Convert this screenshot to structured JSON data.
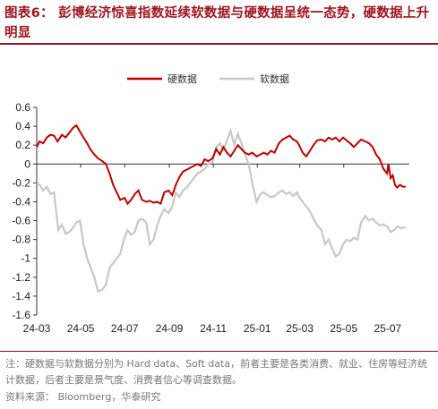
{
  "header": {
    "title": "图表6：  彭博经济惊喜指数延续软数据与硬数据呈统一态势，硬数据上升明显"
  },
  "footer": {
    "note": "注：硬数据与软数据分别为 Hard data、Soft data，前者主要是各类消费、就业、住房等经济统计数据，后者主要是景气度、消费者信心等调查数据。",
    "source": "资料来源：  Bloomberg，华泰研究"
  },
  "colors": {
    "hard": "#c00000",
    "soft": "#c8c8c8",
    "accent": "#a0141e"
  },
  "chart_data": {
    "type": "line",
    "legend_position": "top",
    "grid": false,
    "ylim": [
      -1.6,
      0.6
    ],
    "yticks": [
      0.6,
      0.4,
      0.2,
      0,
      -0.2,
      -0.4,
      -0.6,
      -0.8,
      -1,
      -1.2,
      -1.4,
      -1.6
    ],
    "ytick_labels": [
      "0.6",
      "0.4",
      "0.2",
      "0",
      "-0.2",
      "-0.4",
      "-0.6",
      "-0.8",
      "-1",
      "-1.2",
      "-1.4",
      "-1.6"
    ],
    "xlim": [
      "2024-03-01",
      "2025-07-31"
    ],
    "xticks": [
      "2024-03-01",
      "2024-05-01",
      "2024-07-01",
      "2024-09-01",
      "2024-11-01",
      "2025-01-01",
      "2025-03-01",
      "2025-05-01",
      "2025-07-01"
    ],
    "xtick_labels": [
      "24-03",
      "24-05",
      "24-07",
      "24-09",
      "24-11",
      "25-01",
      "25-03",
      "25-05",
      "25-07"
    ],
    "series": [
      {
        "name": "硬数据",
        "color": "#c00000",
        "points": [
          [
            "2024-03-01",
            0.18
          ],
          [
            "2024-03-05",
            0.24
          ],
          [
            "2024-03-10",
            0.22
          ],
          [
            "2024-03-15",
            0.28
          ],
          [
            "2024-03-20",
            0.31
          ],
          [
            "2024-03-25",
            0.3
          ],
          [
            "2024-03-30",
            0.24
          ],
          [
            "2024-04-05",
            0.31
          ],
          [
            "2024-04-10",
            0.28
          ],
          [
            "2024-04-15",
            0.33
          ],
          [
            "2024-04-20",
            0.38
          ],
          [
            "2024-04-25",
            0.41
          ],
          [
            "2024-05-01",
            0.33
          ],
          [
            "2024-05-05",
            0.28
          ],
          [
            "2024-05-10",
            0.22
          ],
          [
            "2024-05-15",
            0.15
          ],
          [
            "2024-05-20",
            0.1
          ],
          [
            "2024-05-25",
            0.06
          ],
          [
            "2024-05-31",
            0.03
          ],
          [
            "2024-06-05",
            0.0
          ],
          [
            "2024-06-10",
            -0.1
          ],
          [
            "2024-06-15",
            -0.22
          ],
          [
            "2024-06-20",
            -0.3
          ],
          [
            "2024-06-25",
            -0.38
          ],
          [
            "2024-07-01",
            -0.36
          ],
          [
            "2024-07-05",
            -0.42
          ],
          [
            "2024-07-10",
            -0.38
          ],
          [
            "2024-07-15",
            -0.32
          ],
          [
            "2024-07-20",
            -0.28
          ],
          [
            "2024-07-25",
            -0.38
          ],
          [
            "2024-07-31",
            -0.4
          ],
          [
            "2024-08-05",
            -0.39
          ],
          [
            "2024-08-10",
            -0.41
          ],
          [
            "2024-08-15",
            -0.4
          ],
          [
            "2024-08-20",
            -0.42
          ],
          [
            "2024-08-25",
            -0.3
          ],
          [
            "2024-08-31",
            -0.28
          ],
          [
            "2024-09-05",
            -0.33
          ],
          [
            "2024-09-10",
            -0.22
          ],
          [
            "2024-09-15",
            -0.14
          ],
          [
            "2024-09-20",
            -0.08
          ],
          [
            "2024-09-25",
            -0.06
          ],
          [
            "2024-09-30",
            -0.04
          ],
          [
            "2024-10-05",
            -0.02
          ],
          [
            "2024-10-10",
            0.0
          ],
          [
            "2024-10-15",
            -0.02
          ],
          [
            "2024-10-20",
            0.05
          ],
          [
            "2024-10-25",
            0.03
          ],
          [
            "2024-10-31",
            0.06
          ],
          [
            "2024-11-05",
            0.16
          ],
          [
            "2024-11-10",
            0.1
          ],
          [
            "2024-11-15",
            0.18
          ],
          [
            "2024-11-20",
            0.12
          ],
          [
            "2024-11-25",
            0.08
          ],
          [
            "2024-11-30",
            0.14
          ],
          [
            "2024-12-05",
            0.2
          ],
          [
            "2024-12-10",
            0.16
          ],
          [
            "2024-12-15",
            0.12
          ],
          [
            "2024-12-20",
            0.1
          ],
          [
            "2024-12-25",
            0.12
          ],
          [
            "2024-12-31",
            0.08
          ],
          [
            "2025-01-05",
            0.1
          ],
          [
            "2025-01-10",
            0.12
          ],
          [
            "2025-01-15",
            0.1
          ],
          [
            "2025-01-20",
            0.14
          ],
          [
            "2025-01-25",
            0.12
          ],
          [
            "2025-01-31",
            0.22
          ],
          [
            "2025-02-05",
            0.26
          ],
          [
            "2025-02-10",
            0.28
          ],
          [
            "2025-02-15",
            0.3
          ],
          [
            "2025-02-20",
            0.26
          ],
          [
            "2025-02-25",
            0.24
          ],
          [
            "2025-02-28",
            0.2
          ],
          [
            "2025-03-05",
            0.12
          ],
          [
            "2025-03-10",
            0.08
          ],
          [
            "2025-03-15",
            0.14
          ],
          [
            "2025-03-20",
            0.2
          ],
          [
            "2025-03-25",
            0.25
          ],
          [
            "2025-03-31",
            0.26
          ],
          [
            "2025-04-05",
            0.24
          ],
          [
            "2025-04-10",
            0.28
          ],
          [
            "2025-04-15",
            0.26
          ],
          [
            "2025-04-20",
            0.28
          ],
          [
            "2025-04-25",
            0.24
          ],
          [
            "2025-04-30",
            0.28
          ],
          [
            "2025-05-05",
            0.25
          ],
          [
            "2025-05-10",
            0.22
          ],
          [
            "2025-05-15",
            0.18
          ],
          [
            "2025-05-20",
            0.22
          ],
          [
            "2025-05-25",
            0.26
          ],
          [
            "2025-05-31",
            0.24
          ],
          [
            "2025-06-05",
            0.22
          ],
          [
            "2025-06-10",
            0.18
          ],
          [
            "2025-06-15",
            0.1
          ],
          [
            "2025-06-20",
            0.05
          ],
          [
            "2025-06-25",
            -0.05
          ],
          [
            "2025-06-30",
            -0.1
          ],
          [
            "2025-07-02",
            0.0
          ],
          [
            "2025-07-05",
            -0.15
          ],
          [
            "2025-07-08",
            -0.12
          ],
          [
            "2025-07-11",
            -0.22
          ],
          [
            "2025-07-14",
            -0.25
          ],
          [
            "2025-07-18",
            -0.22
          ],
          [
            "2025-07-22",
            -0.24
          ],
          [
            "2025-07-26",
            -0.24
          ]
        ]
      },
      {
        "name": "软数据",
        "color": "#c8c8c8",
        "points": [
          [
            "2024-03-01",
            -0.2
          ],
          [
            "2024-03-05",
            -0.22
          ],
          [
            "2024-03-10",
            -0.28
          ],
          [
            "2024-03-15",
            -0.24
          ],
          [
            "2024-03-20",
            -0.32
          ],
          [
            "2024-03-25",
            -0.3
          ],
          [
            "2024-03-31",
            -0.7
          ],
          [
            "2024-04-05",
            -0.64
          ],
          [
            "2024-04-10",
            -0.74
          ],
          [
            "2024-04-15",
            -0.72
          ],
          [
            "2024-04-20",
            -0.68
          ],
          [
            "2024-04-25",
            -0.62
          ],
          [
            "2024-04-30",
            -0.6
          ],
          [
            "2024-05-05",
            -0.85
          ],
          [
            "2024-05-10",
            -1.0
          ],
          [
            "2024-05-15",
            -1.1
          ],
          [
            "2024-05-20",
            -1.2
          ],
          [
            "2024-05-25",
            -1.35
          ],
          [
            "2024-05-31",
            -1.33
          ],
          [
            "2024-06-05",
            -1.28
          ],
          [
            "2024-06-10",
            -1.1
          ],
          [
            "2024-06-15",
            -1.05
          ],
          [
            "2024-06-20",
            -1.0
          ],
          [
            "2024-06-25",
            -0.95
          ],
          [
            "2024-06-30",
            -0.8
          ],
          [
            "2024-07-05",
            -0.7
          ],
          [
            "2024-07-10",
            -0.75
          ],
          [
            "2024-07-15",
            -0.72
          ],
          [
            "2024-07-20",
            -0.6
          ],
          [
            "2024-07-25",
            -0.58
          ],
          [
            "2024-07-31",
            -0.62
          ],
          [
            "2024-08-05",
            -0.85
          ],
          [
            "2024-08-10",
            -0.8
          ],
          [
            "2024-08-15",
            -0.65
          ],
          [
            "2024-08-20",
            -0.55
          ],
          [
            "2024-08-25",
            -0.48
          ],
          [
            "2024-08-31",
            -0.52
          ],
          [
            "2024-09-05",
            -0.45
          ],
          [
            "2024-09-10",
            -0.3
          ],
          [
            "2024-09-15",
            -0.35
          ],
          [
            "2024-09-20",
            -0.28
          ],
          [
            "2024-09-25",
            -0.25
          ],
          [
            "2024-09-30",
            -0.2
          ],
          [
            "2024-10-05",
            -0.15
          ],
          [
            "2024-10-10",
            -0.1
          ],
          [
            "2024-10-15",
            -0.08
          ],
          [
            "2024-10-20",
            -0.05
          ],
          [
            "2024-10-25",
            0.0
          ],
          [
            "2024-10-31",
            0.02
          ],
          [
            "2024-11-05",
            0.18
          ],
          [
            "2024-11-10",
            0.22
          ],
          [
            "2024-11-15",
            0.15
          ],
          [
            "2024-11-20",
            0.25
          ],
          [
            "2024-11-25",
            0.35
          ],
          [
            "2024-11-30",
            0.2
          ],
          [
            "2024-12-05",
            0.32
          ],
          [
            "2024-12-10",
            0.22
          ],
          [
            "2024-12-15",
            0.1
          ],
          [
            "2024-12-20",
            0.0
          ],
          [
            "2024-12-25",
            -0.2
          ],
          [
            "2024-12-31",
            -0.4
          ],
          [
            "2025-01-05",
            -0.32
          ],
          [
            "2025-01-10",
            -0.3
          ],
          [
            "2025-01-15",
            -0.33
          ],
          [
            "2025-01-20",
            -0.35
          ],
          [
            "2025-01-25",
            -0.34
          ],
          [
            "2025-01-31",
            -0.3
          ],
          [
            "2025-02-05",
            -0.28
          ],
          [
            "2025-02-10",
            -0.32
          ],
          [
            "2025-02-15",
            -0.3
          ],
          [
            "2025-02-20",
            -0.34
          ],
          [
            "2025-02-25",
            -0.3
          ],
          [
            "2025-02-28",
            -0.35
          ],
          [
            "2025-03-05",
            -0.4
          ],
          [
            "2025-03-10",
            -0.45
          ],
          [
            "2025-03-15",
            -0.5
          ],
          [
            "2025-03-20",
            -0.58
          ],
          [
            "2025-03-25",
            -0.65
          ],
          [
            "2025-03-31",
            -0.7
          ],
          [
            "2025-04-05",
            -0.85
          ],
          [
            "2025-04-10",
            -0.8
          ],
          [
            "2025-04-15",
            -0.9
          ],
          [
            "2025-04-20",
            -0.98
          ],
          [
            "2025-04-25",
            -0.95
          ],
          [
            "2025-04-30",
            -0.85
          ],
          [
            "2025-05-05",
            -0.8
          ],
          [
            "2025-05-10",
            -0.82
          ],
          [
            "2025-05-15",
            -0.78
          ],
          [
            "2025-05-20",
            -0.8
          ],
          [
            "2025-05-25",
            -0.62
          ],
          [
            "2025-05-31",
            -0.55
          ],
          [
            "2025-06-05",
            -0.6
          ],
          [
            "2025-06-10",
            -0.58
          ],
          [
            "2025-06-15",
            -0.62
          ],
          [
            "2025-06-20",
            -0.65
          ],
          [
            "2025-06-25",
            -0.64
          ],
          [
            "2025-06-30",
            -0.66
          ],
          [
            "2025-07-05",
            -0.72
          ],
          [
            "2025-07-10",
            -0.7
          ],
          [
            "2025-07-15",
            -0.66
          ],
          [
            "2025-07-20",
            -0.68
          ],
          [
            "2025-07-26",
            -0.67
          ]
        ]
      }
    ]
  }
}
